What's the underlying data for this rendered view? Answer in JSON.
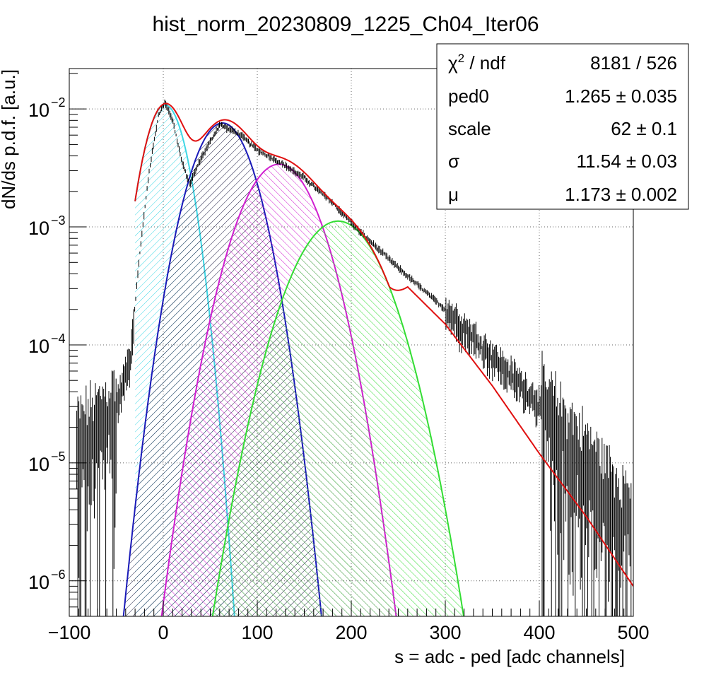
{
  "chart_data": {
    "type": "histogram-fit",
    "title": "hist_norm_20230809_1225_Ch04_Iter06",
    "xlabel": "s = adc - ped [adc channels]",
    "ylabel": "dN/ds p.d.f. [a.u.]",
    "xlim": [
      -100,
      500
    ],
    "ylim": [
      5e-07,
      0.022
    ],
    "ylog": true,
    "grid": true,
    "x_ticks": [
      -100,
      0,
      100,
      200,
      300,
      400,
      500
    ],
    "x_tick_labels": [
      "−100",
      "0",
      "100",
      "200",
      "300",
      "400",
      "500"
    ],
    "y_ticks": [
      {
        "value": 1e-06,
        "base": "10",
        "exp": "−6"
      },
      {
        "value": 1e-05,
        "base": "10",
        "exp": "−5"
      },
      {
        "value": 0.0001,
        "base": "10",
        "exp": "−4"
      },
      {
        "value": 0.001,
        "base": "10",
        "exp": "−3"
      },
      {
        "value": 0.01,
        "base": "10",
        "exp": "−2"
      }
    ],
    "stats_box": {
      "legend_placement": "top-right",
      "rows": [
        {
          "label": "χ",
          "label_sup": "2",
          "label_tail": " / ndf",
          "value": "8181 / 526"
        },
        {
          "label": "ped0",
          "label_sup": "",
          "label_tail": "",
          "value": "1.265 ± 0.035"
        },
        {
          "label": "scale",
          "label_sup": "",
          "label_tail": "",
          "value": "62 ± 0.1"
        },
        {
          "label": "σ",
          "label_sup": "",
          "label_tail": "",
          "value": "11.54 ± 0.03"
        },
        {
          "label": "μ",
          "label_sup": "",
          "label_tail": "",
          "value": "1.173 ± 0.002"
        }
      ]
    },
    "fit_params": {
      "ped0": 1.265,
      "scale": 62,
      "sigma": 11.54,
      "mu": 1.173
    },
    "components": [
      {
        "color": "#3fd7e5",
        "peak_x": 2,
        "peak_y": 0.0108,
        "sigma": 16.5
      },
      {
        "color": "#1a1ab8",
        "peak_x": 63,
        "peak_y": 0.0076,
        "sigma": 24.0
      },
      {
        "color": "#d01fd0",
        "peak_x": 123,
        "peak_y": 0.0034,
        "sigma": 29.7
      },
      {
        "color": "#33dd33",
        "peak_x": 186,
        "peak_y": 0.00112,
        "sigma": 34.0
      }
    ],
    "total_fit": {
      "color": "#e01010",
      "x_range": [
        -30,
        500
      ],
      "tail_points": [
        [
          260,
          0.00031
        ],
        [
          300,
          0.00015
        ],
        [
          350,
          4.5e-05
        ],
        [
          400,
          1.2e-05
        ],
        [
          450,
          3.5e-06
        ],
        [
          500,
          9e-07
        ]
      ]
    },
    "data_series": {
      "color": "#000000",
      "description_points": [
        [
          -90,
          1.5e-05
        ],
        [
          -70,
          2e-05
        ],
        [
          -50,
          3e-05
        ],
        [
          -35,
          8e-05
        ],
        [
          -25,
          0.0006
        ],
        [
          -15,
          0.003
        ],
        [
          -5,
          0.009
        ],
        [
          2,
          0.0115
        ],
        [
          10,
          0.008
        ],
        [
          20,
          0.0035
        ],
        [
          28,
          0.0023
        ],
        [
          40,
          0.0038
        ],
        [
          60,
          0.0074
        ],
        [
          80,
          0.0062
        ],
        [
          100,
          0.0045
        ],
        [
          125,
          0.0035
        ],
        [
          150,
          0.0026
        ],
        [
          180,
          0.0016
        ],
        [
          210,
          0.0009
        ],
        [
          250,
          0.00045
        ],
        [
          300,
          0.0002
        ],
        [
          350,
          8e-05
        ],
        [
          400,
          3.2e-05
        ],
        [
          450,
          1e-05
        ],
        [
          490,
          4e-06
        ]
      ]
    }
  }
}
